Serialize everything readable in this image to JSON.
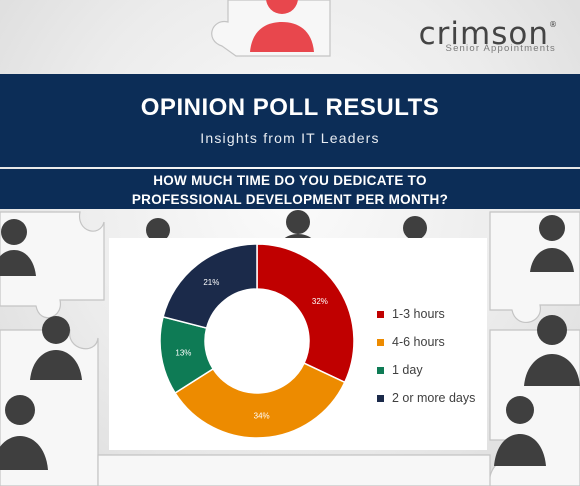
{
  "brand": {
    "name": "crimson",
    "registered_mark": "®",
    "tagline": "Senior Appointments"
  },
  "header": {
    "title": "OPINION POLL RESULTS",
    "subtitle": "Insights from IT Leaders"
  },
  "question": {
    "line1": "HOW MUCH TIME DO YOU DEDICATE TO",
    "line2": "PROFESSIONAL DEVELOPMENT PER MONTH?"
  },
  "chart_data": {
    "type": "pie",
    "variant": "donut",
    "categories": [
      "1-3 hours",
      "4-6 hours",
      "1 day",
      "2 or more days"
    ],
    "values": [
      32,
      34,
      13,
      21
    ],
    "labels": [
      "32%",
      "34%",
      "13%",
      "21%"
    ],
    "colors": [
      "#c00000",
      "#ed8b00",
      "#0e7b55",
      "#1b2a4a"
    ],
    "legend_position": "right"
  }
}
